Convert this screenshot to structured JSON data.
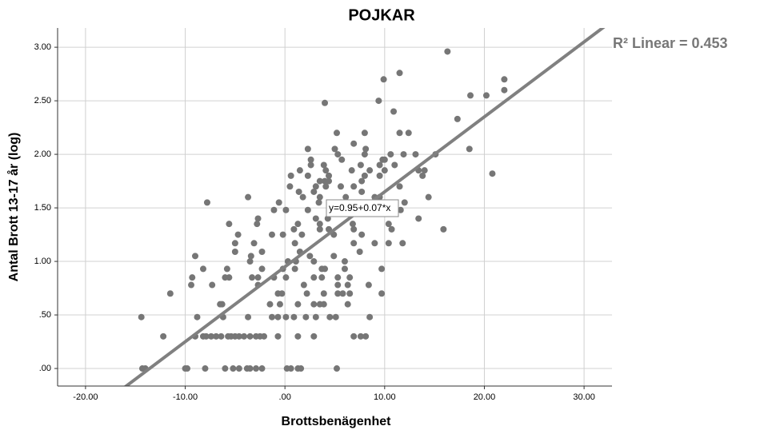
{
  "chart_data": {
    "type": "scatter",
    "title": "POJKAR",
    "x_label": "Brottsbenägenhet",
    "y_label": "Antal Brott 13-17 år (log)",
    "color": "#767676",
    "grid": true,
    "xlim": [
      -22.8,
      32.8
    ],
    "ylim": [
      -0.164,
      3.18
    ],
    "xticks": [
      {
        "value": -20,
        "label": "-20.00"
      },
      {
        "value": -10,
        "label": "-10.00"
      },
      {
        "value": 0,
        "label": ".00"
      },
      {
        "value": 10,
        "label": "10.00"
      },
      {
        "value": 20,
        "label": "20.00"
      },
      {
        "value": 30,
        "label": "30.00"
      }
    ],
    "yticks": [
      {
        "value": 0,
        "label": ".00"
      },
      {
        "value": 0.5,
        "label": ".50"
      },
      {
        "value": 1,
        "label": "1.00"
      },
      {
        "value": 1.5,
        "label": "1.50"
      },
      {
        "value": 2,
        "label": "2.00"
      },
      {
        "value": 2.5,
        "label": "2.50"
      },
      {
        "value": 3,
        "label": "3.00"
      }
    ],
    "trendline": {
      "intercept": 0.95,
      "slope": 0.07,
      "color": "#808080",
      "label": "y=0.95+0.07*x",
      "r2_label": "R² Linear = 0.453"
    },
    "x": [
      -14.3,
      -14.0,
      -10.0,
      -9.8,
      -8.0,
      -6.0,
      -5.2,
      -4.6,
      -3.8,
      -3.5,
      -2.9,
      -2.3,
      0.2,
      0.6,
      1.3,
      1.6,
      5.2,
      -12.2,
      -9.0,
      -8.2,
      -7.9,
      -7.4,
      -6.9,
      -6.4,
      -5.7,
      -5.4,
      -5.0,
      -4.6,
      -4.1,
      -3.5,
      -2.9,
      -2.5,
      -2.1,
      -0.7,
      1.3,
      2.9,
      6.9,
      7.6,
      8.1,
      -14.4,
      -8.8,
      -6.2,
      -3.7,
      -1.3,
      -0.7,
      0.1,
      0.9,
      2.1,
      3.1,
      4.5,
      5.1,
      8.5,
      -6.5,
      -6.3,
      -1.5,
      -0.5,
      1.3,
      2.9,
      3.5,
      3.9,
      6.3,
      -11.5,
      -0.7,
      -0.3,
      2.2,
      3.9,
      5.3,
      5.8,
      6.5,
      9.7,
      -9.4,
      -7.3,
      -2.7,
      1.9,
      5.3,
      6.3,
      8.4,
      -9.3,
      -6.0,
      -5.6,
      -3.3,
      -2.7,
      -1.1,
      0.1,
      2.9,
      3.7,
      5.3,
      6.5,
      -8.2,
      -5.8,
      -2.3,
      -0.2,
      1.0,
      3.7,
      4.0,
      6.0,
      9.7,
      -3.5,
      0.3,
      1.1,
      2.9,
      6.0,
      -9.0,
      -3.4,
      2.5,
      4.9,
      -5.0,
      -2.3,
      1.5,
      7.5,
      -5.0,
      -3.1,
      1.0,
      6.9,
      9.0,
      10.4,
      11.8,
      -4.7,
      -1.3,
      -0.2,
      1.7,
      4.9,
      7.7,
      0.9,
      3.5,
      4.4,
      6.9,
      10.7,
      15.9,
      -5.6,
      -2.8,
      1.3,
      3.5,
      6.8,
      10.4,
      -2.7,
      3.1,
      4.3,
      13.4,
      -1.1,
      0.1,
      2.3,
      5.2,
      6.4,
      8.7,
      10.6,
      11.6,
      -7.8,
      -0.6,
      3.4,
      5.6,
      7.6,
      12.0,
      -3.7,
      1.8,
      3.5,
      6.1,
      9.0,
      9.5,
      14.4,
      1.4,
      2.9,
      7.7,
      0.5,
      3.1,
      4.1,
      5.6,
      6.9,
      11.5,
      3.5,
      4.0,
      4.4,
      7.7,
      0.6,
      2.3,
      4.4,
      8.0,
      9.5,
      13.8,
      20.8,
      1.5,
      4.1,
      6.7,
      8.5,
      10.0,
      13.4,
      14.0,
      2.6,
      3.9,
      7.6,
      9.5,
      11.0,
      2.6,
      5.7,
      9.8,
      10.0,
      5.3,
      8.0,
      10.6,
      11.9,
      13.1,
      15.1,
      2.3,
      5.0,
      8.1,
      18.5,
      6.9,
      5.2,
      8.0,
      11.5,
      12.4,
      17.3,
      10.9,
      4.0,
      9.4,
      18.6,
      20.2,
      22.0,
      9.9,
      22.0,
      11.5,
      16.3
    ],
    "values": [
      0,
      0,
      0,
      0,
      0,
      0,
      0,
      0,
      0,
      0,
      0,
      0,
      0,
      0,
      0,
      0,
      0,
      0.3,
      0.3,
      0.3,
      0.3,
      0.3,
      0.3,
      0.3,
      0.3,
      0.3,
      0.3,
      0.3,
      0.3,
      0.3,
      0.3,
      0.3,
      0.3,
      0.3,
      0.3,
      0.3,
      0.3,
      0.3,
      0.3,
      0.48,
      0.48,
      0.48,
      0.48,
      0.48,
      0.48,
      0.48,
      0.48,
      0.48,
      0.48,
      0.48,
      0.48,
      0.48,
      0.6,
      0.6,
      0.6,
      0.6,
      0.6,
      0.6,
      0.6,
      0.6,
      0.6,
      0.7,
      0.7,
      0.7,
      0.7,
      0.7,
      0.7,
      0.7,
      0.7,
      0.7,
      0.78,
      0.78,
      0.78,
      0.78,
      0.78,
      0.78,
      0.78,
      0.85,
      0.85,
      0.85,
      0.85,
      0.85,
      0.85,
      0.85,
      0.85,
      0.85,
      0.85,
      0.85,
      0.93,
      0.93,
      0.93,
      0.93,
      0.93,
      0.93,
      0.93,
      0.93,
      0.93,
      1,
      1,
      1,
      1,
      1,
      1.05,
      1.05,
      1.05,
      1.05,
      1.09,
      1.09,
      1.09,
      1.09,
      1.17,
      1.17,
      1.17,
      1.17,
      1.17,
      1.17,
      1.17,
      1.25,
      1.25,
      1.25,
      1.25,
      1.25,
      1.25,
      1.3,
      1.3,
      1.3,
      1.3,
      1.3,
      1.3,
      1.35,
      1.35,
      1.35,
      1.35,
      1.35,
      1.35,
      1.4,
      1.4,
      1.4,
      1.4,
      1.48,
      1.48,
      1.48,
      1.48,
      1.48,
      1.48,
      1.48,
      1.48,
      1.55,
      1.55,
      1.55,
      1.55,
      1.55,
      1.55,
      1.6,
      1.6,
      1.6,
      1.6,
      1.6,
      1.6,
      1.6,
      1.65,
      1.65,
      1.65,
      1.7,
      1.7,
      1.7,
      1.7,
      1.7,
      1.7,
      1.75,
      1.75,
      1.75,
      1.75,
      1.8,
      1.8,
      1.8,
      1.8,
      1.8,
      1.8,
      1.82,
      1.85,
      1.85,
      1.85,
      1.85,
      1.85,
      1.85,
      1.85,
      1.9,
      1.9,
      1.9,
      1.9,
      1.9,
      1.95,
      1.95,
      1.95,
      1.95,
      2,
      2,
      2,
      2,
      2,
      2,
      2.05,
      2.05,
      2.05,
      2.05,
      2.1,
      2.2,
      2.2,
      2.2,
      2.2,
      2.33,
      2.4,
      2.48,
      2.5,
      2.55,
      2.55,
      2.6,
      2.7,
      2.7,
      2.76,
      2.96
    ]
  }
}
